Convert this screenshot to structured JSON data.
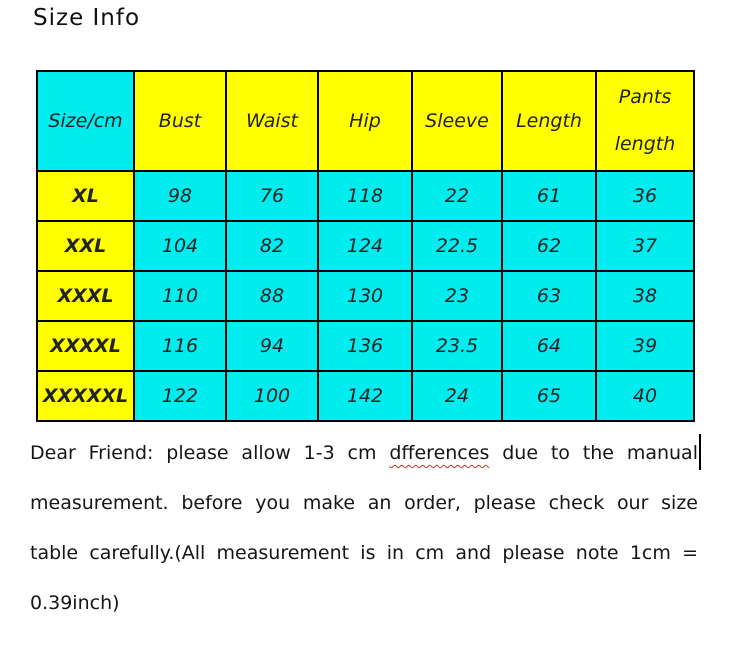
{
  "title": "Size Info",
  "colors": {
    "cyan": "#00EDF0",
    "yellow": "#FFFF00",
    "border": "#000000",
    "text": "#1C1C1C",
    "squiggle": "#C0392B"
  },
  "table": {
    "headers": [
      "Size/cm",
      "Bust",
      "Waist",
      "Hip",
      "Sleeve",
      "Length",
      "Pants length"
    ],
    "rows": [
      {
        "size": "XL",
        "values": [
          "98",
          "76",
          "118",
          "22",
          "61",
          "36"
        ]
      },
      {
        "size": "XXL",
        "values": [
          "104",
          "82",
          "124",
          "22.5",
          "62",
          "37"
        ]
      },
      {
        "size": "XXXL",
        "values": [
          "110",
          "88",
          "130",
          "23",
          "63",
          "38"
        ]
      },
      {
        "size": "XXXXL",
        "values": [
          "116",
          "94",
          "136",
          "23.5",
          "64",
          "39"
        ]
      },
      {
        "size": "XXXXXL",
        "values": [
          "122",
          "100",
          "142",
          "24",
          "65",
          "40"
        ]
      }
    ]
  },
  "note": {
    "line1_prefix": "Dear Friend: please allow 1-3 cm ",
    "line1_misspelled": "dfferences",
    "line1_suffix": " due to the manual",
    "line2": "measurement. before you make an order, please check our size",
    "line3": "table carefully.(All measurement is in cm and please note 1cm =",
    "line4": "0.39inch)"
  }
}
